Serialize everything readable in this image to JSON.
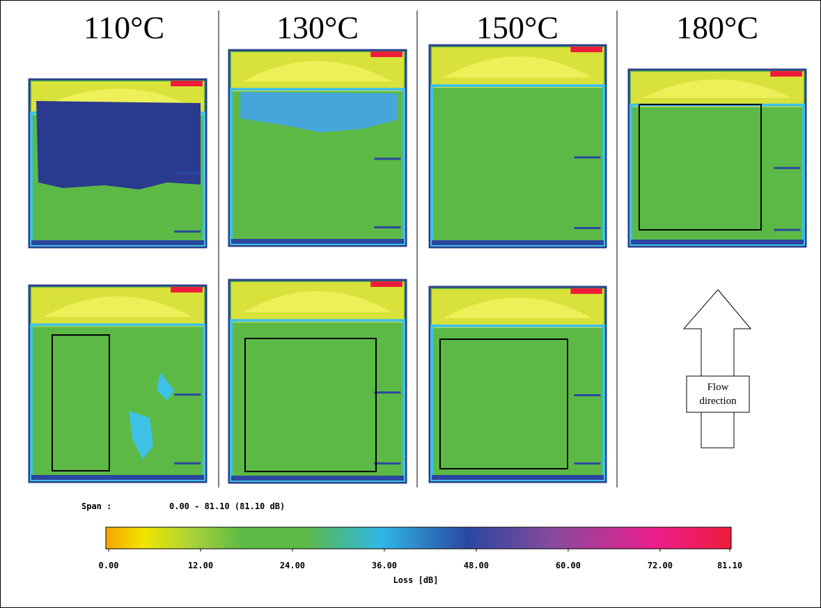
{
  "columns": [
    {
      "title": "110°C"
    },
    {
      "title": "130°C"
    },
    {
      "title": "150°C"
    },
    {
      "title": "180°C"
    }
  ],
  "flow_label": [
    "Flow",
    "direction"
  ],
  "colorbar": {
    "span_label": "Span :",
    "span_text": "0.00 - 81.10 (81.10 dB)",
    "ticks": [
      {
        "value": 0,
        "label": "0.00"
      },
      {
        "value": 12,
        "label": "12.00"
      },
      {
        "value": 24,
        "label": "24.00"
      },
      {
        "value": 36,
        "label": "36.00"
      },
      {
        "value": 48,
        "label": "48.00"
      },
      {
        "value": 60,
        "label": "60.00"
      },
      {
        "value": 72,
        "label": "72.00"
      },
      {
        "value": 81.1,
        "label": "81.10"
      }
    ],
    "axis_label": "Loss [dB]"
  }
}
